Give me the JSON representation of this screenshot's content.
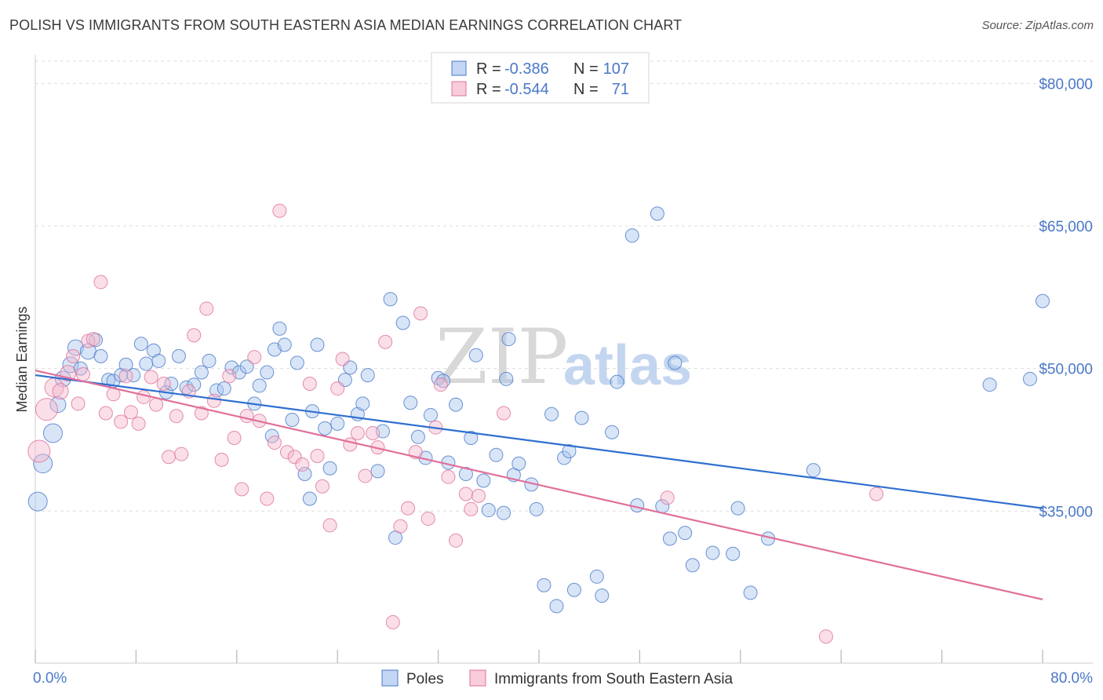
{
  "title": "POLISH VS IMMIGRANTS FROM SOUTH EASTERN ASIA MEDIAN EARNINGS CORRELATION CHART",
  "source": "Source: ZipAtlas.com",
  "watermark": {
    "zip": "ZIP",
    "atlas": "atlas"
  },
  "colors": {
    "blue": "#4a78c8",
    "blue_fill": "#a9c5ee",
    "pink": "#e0709a",
    "pink_fill": "#f5b7cb",
    "grid": "#dddddd"
  },
  "chart_data": {
    "type": "scatter",
    "title": "POLISH VS IMMIGRANTS FROM SOUTH EASTERN ASIA MEDIAN EARNINGS CORRELATION CHART",
    "xlabel": "",
    "ylabel": "Median Earnings",
    "xlim": [
      0,
      80
    ],
    "ylim": [
      19000,
      83000
    ],
    "x_tick_labels": [
      "0.0%",
      "80.0%"
    ],
    "y_ticks": [
      35000,
      50000,
      65000,
      80000
    ],
    "y_tick_labels": [
      "$35,000",
      "$50,000",
      "$65,000",
      "$80,000"
    ],
    "legend": {
      "position": "top-center",
      "rows": [
        {
          "r_label": "R =",
          "r_value": "-0.386",
          "n_label": "N =",
          "n_value": "107"
        },
        {
          "r_label": "R =",
          "r_value": "-0.544",
          "n_label": "N =",
          "n_value": "71"
        }
      ]
    },
    "bottom_legend": [
      "Poles",
      "Immigrants from South Eastern Asia"
    ],
    "series": [
      {
        "name": "Poles",
        "r": -0.386,
        "n": 107,
        "trend": {
          "x": [
            0,
            80
          ],
          "y": [
            49300,
            35300
          ]
        },
        "points": [
          [
            0.2,
            36000,
            3
          ],
          [
            0.6,
            40000,
            3
          ],
          [
            1.4,
            43200,
            3
          ],
          [
            1.8,
            46200,
            2
          ],
          [
            2.2,
            48900,
            2
          ],
          [
            2.8,
            50400,
            2
          ],
          [
            3.2,
            52200,
            2
          ],
          [
            3.6,
            50000,
            1
          ],
          [
            4.2,
            51800,
            2
          ],
          [
            4.8,
            53000,
            1
          ],
          [
            5.2,
            51300,
            1
          ],
          [
            5.8,
            48800,
            1
          ],
          [
            6.2,
            48700,
            1
          ],
          [
            6.8,
            49300,
            1
          ],
          [
            7.2,
            50400,
            1
          ],
          [
            7.8,
            49300,
            1
          ],
          [
            8.4,
            52600,
            1
          ],
          [
            8.8,
            50500,
            1
          ],
          [
            9.4,
            51900,
            1
          ],
          [
            9.8,
            50800,
            1
          ],
          [
            10.4,
            47500,
            1
          ],
          [
            10.8,
            48400,
            1
          ],
          [
            11.4,
            51300,
            1
          ],
          [
            12.0,
            48000,
            1
          ],
          [
            12.6,
            48300,
            1
          ],
          [
            13.2,
            49600,
            1
          ],
          [
            13.8,
            50800,
            1
          ],
          [
            14.4,
            47700,
            1
          ],
          [
            15.0,
            47900,
            1
          ],
          [
            15.6,
            50100,
            1
          ],
          [
            16.2,
            49600,
            1
          ],
          [
            16.8,
            50200,
            1
          ],
          [
            17.4,
            46300,
            1
          ],
          [
            17.8,
            48200,
            1
          ],
          [
            18.4,
            49600,
            1
          ],
          [
            18.8,
            42900,
            1
          ],
          [
            19.0,
            52000,
            1
          ],
          [
            19.4,
            54200,
            1
          ],
          [
            19.8,
            52500,
            1
          ],
          [
            20.4,
            44600,
            1
          ],
          [
            20.8,
            50600,
            1
          ],
          [
            21.4,
            38900,
            1
          ],
          [
            21.8,
            36300,
            1
          ],
          [
            22.0,
            45500,
            1
          ],
          [
            22.4,
            52500,
            1
          ],
          [
            23.0,
            43700,
            1
          ],
          [
            23.4,
            39500,
            1
          ],
          [
            24.0,
            44200,
            1
          ],
          [
            24.6,
            48800,
            1
          ],
          [
            25.0,
            50100,
            1
          ],
          [
            25.6,
            45200,
            1
          ],
          [
            26.0,
            46300,
            1
          ],
          [
            26.4,
            49300,
            1
          ],
          [
            27.2,
            39200,
            1
          ],
          [
            27.6,
            43400,
            1
          ],
          [
            28.2,
            57300,
            1
          ],
          [
            28.6,
            32200,
            1
          ],
          [
            29.2,
            54800,
            1
          ],
          [
            29.8,
            46400,
            1
          ],
          [
            30.4,
            42800,
            1
          ],
          [
            31.0,
            40600,
            1
          ],
          [
            31.4,
            45100,
            1
          ],
          [
            32.0,
            49000,
            1
          ],
          [
            32.4,
            48700,
            1
          ],
          [
            32.8,
            40100,
            1
          ],
          [
            33.4,
            46200,
            1
          ],
          [
            34.2,
            38900,
            1
          ],
          [
            34.6,
            42700,
            1
          ],
          [
            35.0,
            51400,
            1
          ],
          [
            35.6,
            38200,
            1
          ],
          [
            36.0,
            35100,
            1
          ],
          [
            36.6,
            40900,
            1
          ],
          [
            37.2,
            34800,
            1
          ],
          [
            37.4,
            48900,
            1
          ],
          [
            37.6,
            53100,
            1
          ],
          [
            38.0,
            38800,
            1
          ],
          [
            38.4,
            40000,
            1
          ],
          [
            39.4,
            37800,
            1
          ],
          [
            39.8,
            35200,
            1
          ],
          [
            40.4,
            27200,
            1
          ],
          [
            41.0,
            45200,
            1
          ],
          [
            41.4,
            25000,
            1
          ],
          [
            42.0,
            40600,
            1
          ],
          [
            42.4,
            41300,
            1
          ],
          [
            42.8,
            26700,
            1
          ],
          [
            43.4,
            44800,
            1
          ],
          [
            44.6,
            28100,
            1
          ],
          [
            45.0,
            26100,
            1
          ],
          [
            45.8,
            43300,
            1
          ],
          [
            46.2,
            48600,
            1
          ],
          [
            47.4,
            64000,
            1
          ],
          [
            47.8,
            35600,
            1
          ],
          [
            49.4,
            66300,
            1
          ],
          [
            49.8,
            35500,
            1
          ],
          [
            50.4,
            32100,
            1
          ],
          [
            50.8,
            50600,
            1
          ],
          [
            51.6,
            32700,
            1
          ],
          [
            52.2,
            29300,
            1
          ],
          [
            53.8,
            30600,
            1
          ],
          [
            55.4,
            30500,
            1
          ],
          [
            55.8,
            35300,
            1
          ],
          [
            56.8,
            26400,
            1
          ],
          [
            58.2,
            32100,
            1
          ],
          [
            61.8,
            39300,
            1
          ],
          [
            75.8,
            48300,
            1
          ],
          [
            79.0,
            48900,
            1
          ],
          [
            80.0,
            57100,
            1
          ]
        ]
      },
      {
        "name": "Immigrants from South Eastern Asia",
        "r": -0.544,
        "n": 71,
        "trend": {
          "x": [
            0,
            80
          ],
          "y": [
            49800,
            25700
          ]
        },
        "points": [
          [
            0.3,
            41300,
            4
          ],
          [
            0.9,
            45700,
            4
          ],
          [
            1.5,
            48000,
            3
          ],
          [
            2.0,
            47600,
            2
          ],
          [
            2.6,
            49500,
            2
          ],
          [
            3.0,
            51300,
            1
          ],
          [
            3.4,
            46300,
            1
          ],
          [
            3.8,
            49400,
            1
          ],
          [
            4.2,
            52900,
            1
          ],
          [
            4.6,
            53100,
            1
          ],
          [
            5.2,
            59100,
            1
          ],
          [
            5.6,
            45300,
            1
          ],
          [
            6.2,
            47300,
            1
          ],
          [
            6.8,
            44400,
            1
          ],
          [
            7.2,
            49200,
            1
          ],
          [
            7.6,
            45400,
            1
          ],
          [
            8.2,
            44200,
            1
          ],
          [
            8.6,
            47000,
            1
          ],
          [
            9.2,
            49100,
            1
          ],
          [
            9.6,
            46200,
            1
          ],
          [
            10.2,
            48400,
            1
          ],
          [
            10.6,
            40700,
            1
          ],
          [
            11.2,
            45000,
            1
          ],
          [
            11.6,
            41000,
            1
          ],
          [
            12.2,
            47600,
            1
          ],
          [
            12.6,
            53500,
            1
          ],
          [
            13.2,
            45300,
            1
          ],
          [
            13.6,
            56300,
            1
          ],
          [
            14.2,
            46600,
            1
          ],
          [
            14.8,
            40400,
            1
          ],
          [
            15.4,
            49200,
            1
          ],
          [
            15.8,
            42700,
            1
          ],
          [
            16.4,
            37300,
            1
          ],
          [
            16.8,
            45000,
            1
          ],
          [
            17.4,
            51200,
            1
          ],
          [
            17.8,
            44500,
            1
          ],
          [
            18.4,
            36300,
            1
          ],
          [
            19.0,
            42200,
            1
          ],
          [
            19.4,
            66600,
            1
          ],
          [
            20.0,
            41200,
            1
          ],
          [
            20.6,
            40700,
            1
          ],
          [
            21.2,
            39900,
            1
          ],
          [
            21.8,
            48400,
            1
          ],
          [
            22.4,
            40800,
            1
          ],
          [
            22.8,
            37600,
            1
          ],
          [
            23.4,
            33500,
            1
          ],
          [
            24.0,
            47900,
            1
          ],
          [
            24.4,
            51000,
            1
          ],
          [
            25.0,
            42000,
            1
          ],
          [
            25.6,
            43200,
            1
          ],
          [
            26.2,
            38700,
            1
          ],
          [
            26.8,
            43200,
            1
          ],
          [
            27.2,
            41700,
            1
          ],
          [
            27.8,
            52800,
            1
          ],
          [
            28.4,
            23300,
            1
          ],
          [
            29.0,
            33400,
            1
          ],
          [
            29.6,
            35300,
            1
          ],
          [
            30.2,
            41200,
            1
          ],
          [
            30.6,
            55800,
            1
          ],
          [
            31.2,
            34200,
            1
          ],
          [
            31.8,
            43800,
            1
          ],
          [
            32.2,
            48300,
            1
          ],
          [
            32.8,
            38600,
            1
          ],
          [
            33.4,
            31900,
            1
          ],
          [
            34.2,
            36800,
            1
          ],
          [
            34.6,
            35200,
            1
          ],
          [
            35.2,
            36600,
            1
          ],
          [
            37.2,
            45300,
            1
          ],
          [
            50.2,
            36400,
            1
          ],
          [
            62.8,
            21800,
            1
          ],
          [
            66.8,
            36800,
            1
          ]
        ]
      }
    ]
  }
}
